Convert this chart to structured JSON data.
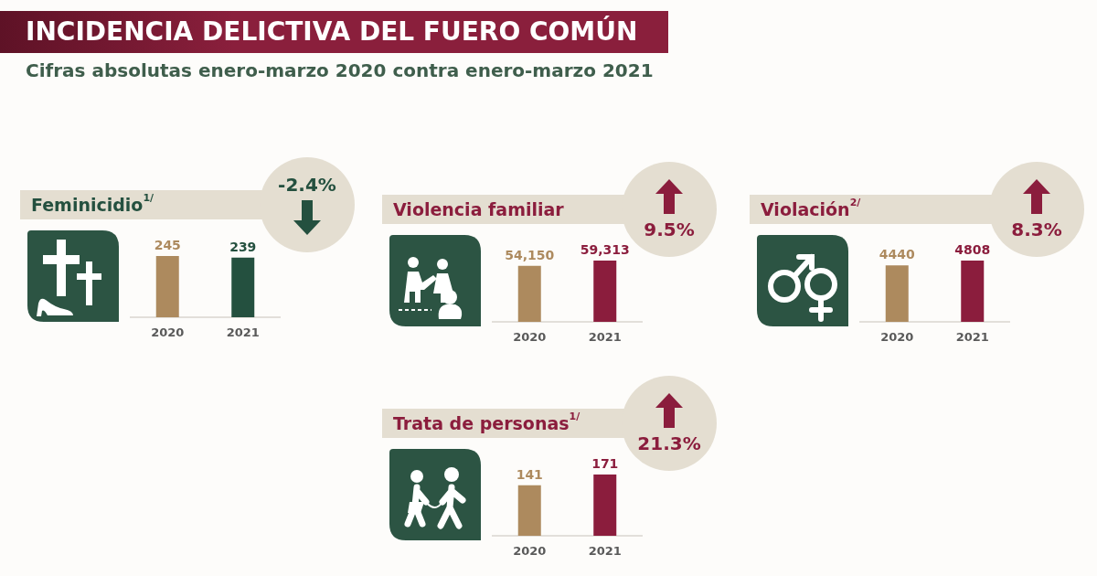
{
  "chart_data": [
    {
      "type": "other",
      "title": "INCIDENCIA DELICTIVA DEL FUERO COMÚN",
      "subtitle": "Cifras absolutas enero-marzo 2020 contra enero-marzo 2021"
    },
    {
      "type": "bar",
      "title": "Feminicidio$^{1/}$",
      "categories": [
        "2020",
        "2021"
      ],
      "values": [
        245,
        239
      ],
      "colors": [
        "#ad8a5e",
        "#24503f"
      ],
      "data_labels": true,
      "tick_labels": "x",
      "annotations": [
        "-2.4%"
      ]
    },
    {
      "type": "bar",
      "title": "Violencia familiar",
      "categories": [
        "2020",
        "2021"
      ],
      "values": [
        54150,
        59313
      ],
      "colors": [
        "#ad8a5e",
        "#8b1d3d"
      ],
      "value_labels": [
        "54,150",
        "59,313"
      ],
      "tick_labels": "x",
      "annotations": [
        "9.5%"
      ]
    },
    {
      "type": "bar",
      "title": "Violación$^{2/}$",
      "categories": [
        "2020",
        "2021"
      ],
      "values": [
        4440,
        4808
      ],
      "colors": [
        "#ad8a5e",
        "#8b1d3d"
      ],
      "data_labels": true,
      "tick_labels": "x",
      "annotations": [
        "8.3%"
      ]
    },
    {
      "type": "bar",
      "title": "Trata de personas$^{1/}$",
      "categories": [
        "2020",
        "2021"
      ],
      "values": [
        141,
        171
      ],
      "colors": [
        "#ad8a5e",
        "#8b1d3d"
      ],
      "data_labels": true,
      "tick_labels": "x",
      "annotations": [
        "21.3%"
      ]
    }
  ]
}
